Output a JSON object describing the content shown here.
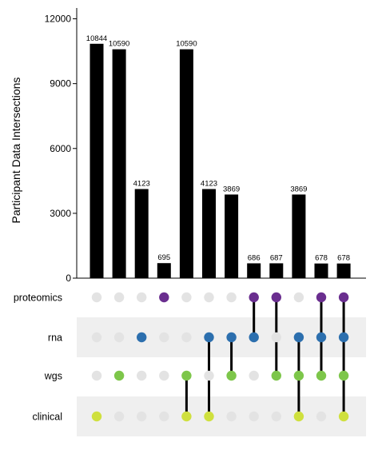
{
  "chart_data": {
    "type": "bar",
    "subtype": "upset",
    "ylabel": "Participant Data Intersections",
    "ylim": [
      0,
      12500
    ],
    "yticks": [
      0,
      3000,
      6000,
      9000,
      12000
    ],
    "sets": [
      "proteomics",
      "rna",
      "wgs",
      "clinical"
    ],
    "set_colors": {
      "proteomics": "#6a2e8f",
      "rna": "#2c6fae",
      "wgs": "#7dc64a",
      "clinical": "#cfe03e"
    },
    "inactive_dot_color": "#e3e3e3",
    "striped_rows": [
      "rna",
      "clinical"
    ],
    "intersections": [
      {
        "value": 10844,
        "label": "10844",
        "members": [
          "clinical"
        ]
      },
      {
        "value": 10590,
        "label": "10590",
        "members": [
          "wgs"
        ]
      },
      {
        "value": 4123,
        "label": "4123",
        "members": [
          "rna"
        ]
      },
      {
        "value": 695,
        "label": "695",
        "members": [
          "proteomics"
        ]
      },
      {
        "value": 10590,
        "label": "10590",
        "members": [
          "wgs",
          "clinical"
        ]
      },
      {
        "value": 4123,
        "label": "4123",
        "members": [
          "rna",
          "clinical"
        ]
      },
      {
        "value": 3869,
        "label": "3869",
        "members": [
          "rna",
          "wgs"
        ]
      },
      {
        "value": 686,
        "label": "686",
        "members": [
          "proteomics",
          "rna"
        ]
      },
      {
        "value": 687,
        "label": "687",
        "members": [
          "proteomics",
          "wgs"
        ]
      },
      {
        "value": 3869,
        "label": "3869",
        "members": [
          "rna",
          "wgs",
          "clinical"
        ]
      },
      {
        "value": 678,
        "label": "678",
        "members": [
          "proteomics",
          "rna",
          "wgs"
        ]
      },
      {
        "value": 678,
        "label": "678",
        "members": [
          "proteomics",
          "rna",
          "wgs",
          "clinical"
        ]
      }
    ]
  }
}
